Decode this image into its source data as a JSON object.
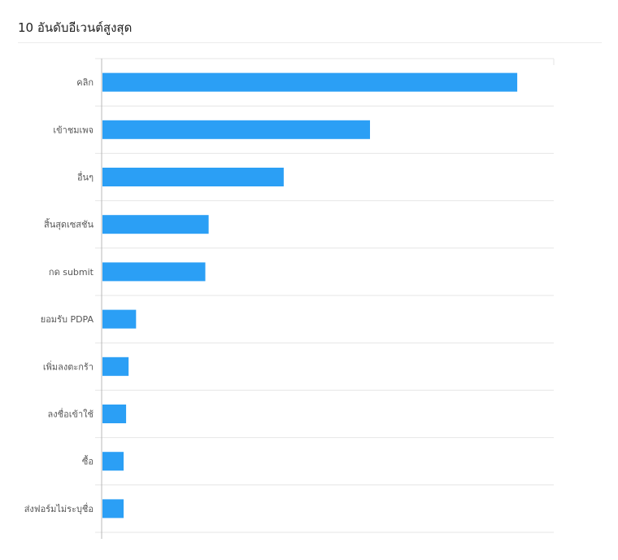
{
  "title": "10 อันดับอีเวนต์สูงสุด",
  "colors": {
    "bar": "#2b9ff5",
    "grid": "#e6e6e6",
    "axis": "#b8b8b8"
  },
  "chart_data": {
    "type": "bar",
    "orientation": "horizontal",
    "title": "10 อันดับอีเวนต์สูงสุด",
    "xlabel": "",
    "ylabel": "",
    "grid": true,
    "categories": [
      "คลิก",
      "เข้าชมเพจ",
      "อื่นๆ",
      "สิ้นสุดเซสชัน",
      "กด submit",
      "ยอมรับ PDPA",
      "เพิ่มลงตะกร้า",
      "ลงชื่อเข้าใช้",
      "ซื้อ",
      "ส่งฟอร์มไม่ระบุชื่อ"
    ],
    "values": [
      100,
      64.5,
      43.7,
      25.6,
      24.8,
      8.1,
      6.3,
      5.7,
      5.1,
      5.1
    ],
    "xlim": [
      0,
      109
    ]
  }
}
